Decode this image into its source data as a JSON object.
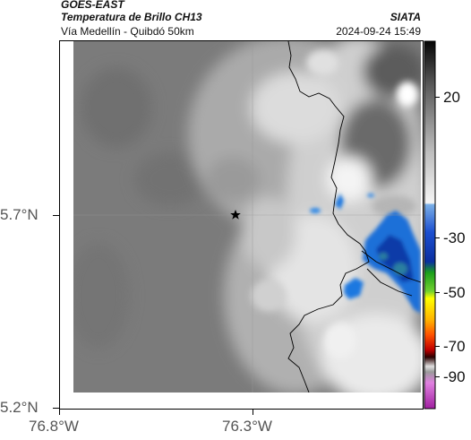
{
  "header": {
    "satellite": "GOES-EAST",
    "product": "Temperatura de Brillo CH13",
    "region": "Vía Medellín - Quibdó 50km",
    "agency": "SIATA",
    "datetime": "2024-09-24 15:49"
  },
  "map": {
    "lat_ticks": [
      "5.7°N",
      "5.2°N"
    ],
    "lon_ticks": [
      "76.8°W",
      "76.3°W"
    ],
    "marker": "star-marker",
    "colors": {
      "land_gray": "#7a7a7a",
      "cloud_white": "#f2f2f2",
      "cold_blue": "#0a3fb0",
      "coast_line": "#000000"
    }
  },
  "colorbar": {
    "ticks": [
      "20",
      "-30",
      "-50",
      "-70",
      "-90"
    ],
    "colors": [
      "#0a0a0a",
      "#bdbdbd",
      "#ffffff",
      "#0a2fa0",
      "#18b018",
      "#ffff00",
      "#ff8000",
      "#d00000",
      "#3a0000",
      "#cc33cc"
    ]
  }
}
